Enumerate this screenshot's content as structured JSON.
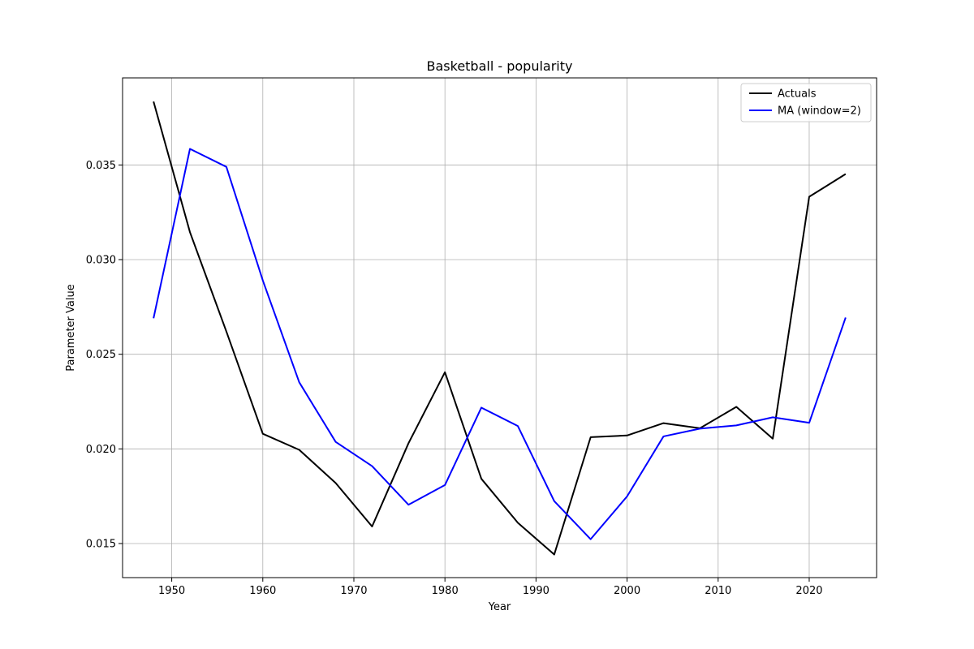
{
  "chart_data": {
    "type": "line",
    "title": "Basketball - popularity",
    "xlabel": "Year",
    "ylabel": "Parameter Value",
    "xlim": [
      1944.6,
      2027.4
    ],
    "ylim": [
      0.0132,
      0.0396
    ],
    "xticks": [
      1950,
      1960,
      1970,
      1980,
      1990,
      2000,
      2010,
      2020
    ],
    "yticks": [
      0.015,
      0.02,
      0.025,
      0.03,
      0.035
    ],
    "ytick_labels": [
      "0.015",
      "0.020",
      "0.025",
      "0.030",
      "0.035"
    ],
    "grid": true,
    "legend_position": "top-right",
    "x": [
      1948,
      1952,
      1956,
      1960,
      1964,
      1968,
      1972,
      1976,
      1980,
      1984,
      1988,
      1992,
      1996,
      2000,
      2004,
      2008,
      2012,
      2016,
      2020,
      2024
    ],
    "series": [
      {
        "name": "Actuals",
        "color": "#000000",
        "values": [
          0.03835,
          0.03145,
          0.0262,
          0.0208,
          0.01995,
          0.0182,
          0.0159,
          0.0203,
          0.02405,
          0.01842,
          0.0161,
          0.01442,
          0.02062,
          0.02071,
          0.02136,
          0.02109,
          0.02222,
          0.02054,
          0.03332,
          0.03452
        ]
      },
      {
        "name": "MA (window=2)",
        "color": "#0000ff",
        "values": [
          0.0269,
          0.03585,
          0.0349,
          0.0289,
          0.02352,
          0.02037,
          0.01909,
          0.01705,
          0.01809,
          0.02218,
          0.02121,
          0.01724,
          0.01523,
          0.01749,
          0.02066,
          0.02107,
          0.02124,
          0.02167,
          0.02138,
          0.02694
        ]
      }
    ]
  }
}
